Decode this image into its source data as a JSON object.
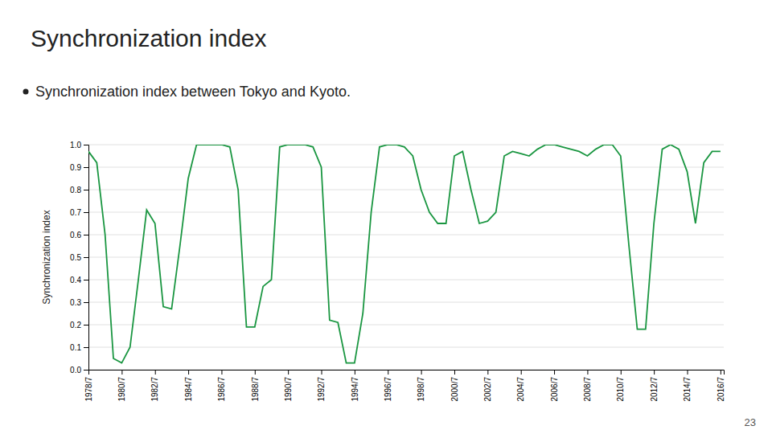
{
  "chart_data": {
    "type": "line",
    "title": "Synchronization index",
    "subtitle": "Synchronization index between Tokyo and Kyoto.",
    "y_label": "Synchronization index",
    "annotations": [
      "23"
    ],
    "color": "#1a9641",
    "grid": "y",
    "xlim": [
      1978.5,
      2016.7
    ],
    "xticks": [
      {
        "value": 1978.5,
        "label": "1978/7"
      },
      {
        "value": 1980.5,
        "label": "1980/7"
      },
      {
        "value": 1982.5,
        "label": "1982/7"
      },
      {
        "value": 1984.5,
        "label": "1984/7"
      },
      {
        "value": 1986.5,
        "label": "1986/7"
      },
      {
        "value": 1988.5,
        "label": "1988/7"
      },
      {
        "value": 1990.5,
        "label": "1990/7"
      },
      {
        "value": 1992.5,
        "label": "1992/7"
      },
      {
        "value": 1994.5,
        "label": "1994/7"
      },
      {
        "value": 1996.5,
        "label": "1996/7"
      },
      {
        "value": 1998.5,
        "label": "1998/7"
      },
      {
        "value": 2000.5,
        "label": "2000/7"
      },
      {
        "value": 2002.5,
        "label": "2002/7"
      },
      {
        "value": 2004.5,
        "label": "2004/7"
      },
      {
        "value": 2006.5,
        "label": "2006/7"
      },
      {
        "value": 2008.5,
        "label": "2008/7"
      },
      {
        "value": 2010.5,
        "label": "2010/7"
      },
      {
        "value": 2012.5,
        "label": "2012/7"
      },
      {
        "value": 2014.5,
        "label": "2014/7"
      },
      {
        "value": 2016.5,
        "label": "2016/7"
      }
    ],
    "ylim": [
      0.0,
      1.0
    ],
    "yticks": [
      {
        "value": 0.0,
        "label": "0.0"
      },
      0.1,
      0.2,
      0.3,
      0.4,
      0.5,
      0.6,
      0.7,
      0.8,
      0.9,
      {
        "value": 1.0,
        "label": "1.0"
      }
    ],
    "x": [
      1978.5,
      1979.0,
      1979.5,
      1980.0,
      1980.5,
      1981.0,
      1981.5,
      1982.0,
      1982.5,
      1983.0,
      1983.5,
      1984.0,
      1984.5,
      1985.0,
      1985.5,
      1986.0,
      1986.5,
      1987.0,
      1987.5,
      1988.0,
      1988.5,
      1989.0,
      1989.5,
      1990.0,
      1990.5,
      1991.0,
      1991.5,
      1992.0,
      1992.5,
      1993.0,
      1993.5,
      1994.0,
      1994.5,
      1995.0,
      1995.5,
      1996.0,
      1996.5,
      1997.0,
      1997.5,
      1998.0,
      1998.5,
      1999.0,
      1999.5,
      2000.0,
      2000.5,
      2001.0,
      2001.5,
      2002.0,
      2002.5,
      2003.0,
      2003.5,
      2004.0,
      2004.5,
      2005.0,
      2005.5,
      2006.0,
      2006.5,
      2007.0,
      2007.5,
      2008.0,
      2008.5,
      2009.0,
      2009.5,
      2010.0,
      2010.5,
      2011.0,
      2011.5,
      2012.0,
      2012.5,
      2013.0,
      2013.5,
      2014.0,
      2014.5,
      2015.0,
      2015.5,
      2016.0,
      2016.5
    ],
    "values": [
      0.97,
      0.92,
      0.6,
      0.05,
      0.03,
      0.1,
      0.4,
      0.71,
      0.65,
      0.28,
      0.27,
      0.55,
      0.85,
      1.0,
      1.0,
      1.0,
      1.0,
      0.99,
      0.8,
      0.19,
      0.19,
      0.37,
      0.4,
      0.99,
      1.0,
      1.0,
      1.0,
      0.99,
      0.9,
      0.22,
      0.21,
      0.03,
      0.03,
      0.25,
      0.7,
      0.99,
      1.0,
      1.0,
      0.99,
      0.95,
      0.8,
      0.7,
      0.65,
      0.65,
      0.95,
      0.97,
      0.8,
      0.65,
      0.66,
      0.7,
      0.95,
      0.97,
      0.96,
      0.95,
      0.98,
      1.0,
      1.0,
      0.99,
      0.98,
      0.97,
      0.95,
      0.98,
      1.0,
      1.0,
      0.95,
      0.55,
      0.18,
      0.18,
      0.65,
      0.98,
      1.0,
      0.98,
      0.88,
      0.65,
      0.92,
      0.97,
      0.97
    ]
  }
}
